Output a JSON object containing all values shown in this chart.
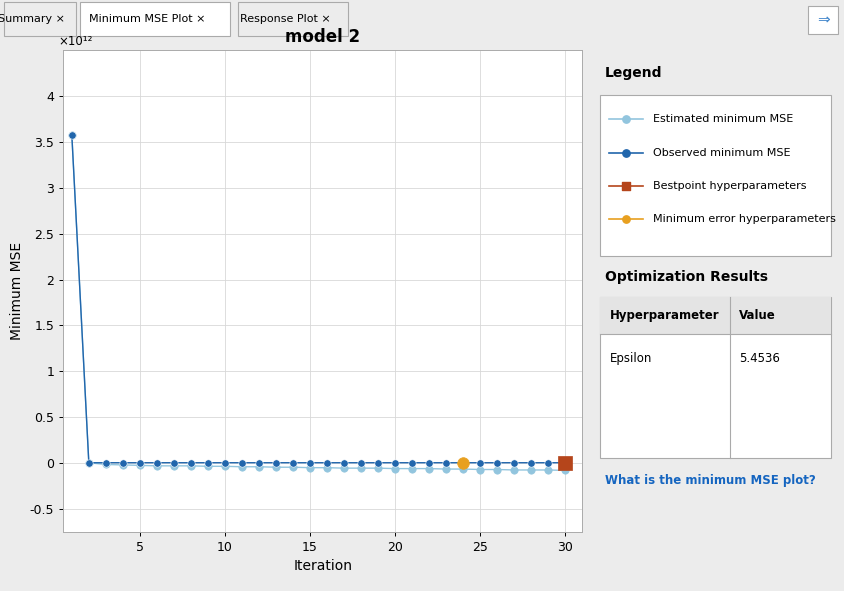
{
  "title": "model 2",
  "xlabel": "Iteration",
  "ylabel": "Minimum MSE",
  "n_iterations": 30,
  "ylim": [
    -750000000000.0,
    4500000000000.0
  ],
  "xlim": [
    0.5,
    31
  ],
  "yticks": [
    -500000000000.0,
    0.0,
    500000000000.0,
    1000000000000.0,
    1500000000000.0,
    2000000000000.0,
    2500000000000.0,
    3000000000000.0,
    3500000000000.0,
    4000000000000.0
  ],
  "ytick_labels": [
    "-0.5",
    "0",
    "0.5",
    "1",
    "1.5",
    "2",
    "2.5",
    "3",
    "3.5",
    "4"
  ],
  "xticks": [
    5,
    10,
    15,
    20,
    25,
    30
  ],
  "scale_label": "×10¹²",
  "obs_values": [
    3580000000000.0,
    4000000000.0,
    4000000000.0,
    4000000000.0,
    4000000000.0,
    4000000000.0,
    4000000000.0,
    4000000000.0,
    4000000000.0,
    4000000000.0,
    4000000000.0,
    4000000000.0,
    4000000000.0,
    4000000000.0,
    4000000000.0,
    4000000000.0,
    4000000000.0,
    4000000000.0,
    4000000000.0,
    4000000000.0,
    4000000000.0,
    4000000000.0,
    4000000000.0,
    4000000000.0,
    4000000000.0,
    4000000000.0,
    4000000000.0,
    4000000000.0,
    4000000000.0,
    4000000000.0
  ],
  "est_values": [
    3580000000000.0,
    3000000000.0,
    -15000000000.0,
    -20000000000.0,
    -25000000000.0,
    -30000000000.0,
    -30000000000.0,
    -30000000000.0,
    -35000000000.0,
    -35000000000.0,
    -40000000000.0,
    -40000000000.0,
    -45000000000.0,
    -45000000000.0,
    -50000000000.0,
    -50000000000.0,
    -55000000000.0,
    -55000000000.0,
    -55000000000.0,
    -60000000000.0,
    -60000000000.0,
    -60000000000.0,
    -65000000000.0,
    -65000000000.0,
    -70000000000.0,
    -70000000000.0,
    -75000000000.0,
    -75000000000.0,
    -75000000000.0,
    -80000000000.0
  ],
  "bestpoint_iter": 30,
  "minerror_iter": 24,
  "color_estimated": "#92C5DE",
  "color_observed": "#2166AC",
  "color_bestpoint": "#B5451B",
  "color_minerror": "#E8A020",
  "bg_color": "#ECECEC",
  "plot_bg_color": "#FFFFFF",
  "grid_color": "#D8D8D8",
  "legend_entries": [
    "Estimated minimum MSE",
    "Observed minimum MSE",
    "Bestpoint hyperparameters",
    "Minimum error hyperparameters"
  ],
  "opt_results_title": "Optimization Results",
  "opt_table_headers": [
    "Hyperparameter",
    "Value"
  ],
  "opt_table_rows": [
    [
      "Epsilon",
      "5.4536"
    ]
  ],
  "link_text": "What is the minimum MSE plot?",
  "tabs": [
    "Summary",
    "Minimum MSE Plot",
    "Response Plot"
  ]
}
